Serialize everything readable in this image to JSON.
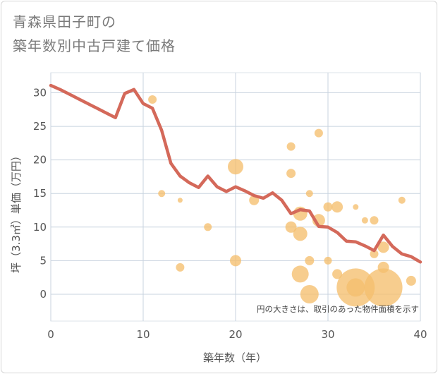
{
  "title": {
    "line1": "青森県田子町の",
    "line2": "築年数別中古戸建て価格"
  },
  "chart_data": {
    "type": "line",
    "xlabel": "築年数（年）",
    "ylabel": "坪（3.3㎡）単価（万円）",
    "xlim": [
      0,
      40
    ],
    "ylim": [
      -4,
      33
    ],
    "x_ticks": [
      0,
      10,
      20,
      30,
      40
    ],
    "y_ticks": [
      0,
      5,
      10,
      15,
      20,
      25,
      30
    ],
    "grid": true,
    "note": "円の大きさは、取引のあった物件面積を示す",
    "colors": {
      "line": "#d4695a",
      "bubble": "#f5bf6e",
      "grid": "#c8d3df",
      "axis_text": "#555555"
    },
    "line": {
      "x": [
        0,
        1,
        2,
        3,
        4,
        5,
        6,
        7,
        8,
        9,
        10,
        11,
        12,
        13,
        14,
        15,
        16,
        17,
        18,
        19,
        20,
        21,
        22,
        23,
        24,
        25,
        26,
        27,
        28,
        29,
        30,
        31,
        32,
        33,
        34,
        35,
        36,
        37,
        38,
        39,
        40
      ],
      "y": [
        31.1,
        30.5,
        29.8,
        29.1,
        28.4,
        27.7,
        27.0,
        26.3,
        29.9,
        30.5,
        28.4,
        27.7,
        24.4,
        19.5,
        17.6,
        16.6,
        15.9,
        17.6,
        16.0,
        15.3,
        16.0,
        15.4,
        14.7,
        14.3,
        15.1,
        14.0,
        12.0,
        12.6,
        12.4,
        10.1,
        10.0,
        9.2,
        7.9,
        7.8,
        7.2,
        6.5,
        8.8,
        7.1,
        6.0,
        5.6,
        4.8
      ]
    },
    "bubbles": [
      {
        "x": 11,
        "y": 29,
        "r": 6
      },
      {
        "x": 12,
        "y": 15,
        "r": 5
      },
      {
        "x": 14,
        "y": 14,
        "r": 3.5
      },
      {
        "x": 14,
        "y": 4,
        "r": 6
      },
      {
        "x": 17,
        "y": 10,
        "r": 5.5
      },
      {
        "x": 20,
        "y": 19,
        "r": 11
      },
      {
        "x": 20,
        "y": 5,
        "r": 8
      },
      {
        "x": 22,
        "y": 14,
        "r": 7
      },
      {
        "x": 26,
        "y": 22,
        "r": 6
      },
      {
        "x": 26,
        "y": 18,
        "r": 6.5
      },
      {
        "x": 26,
        "y": 10,
        "r": 8
      },
      {
        "x": 27,
        "y": 12,
        "r": 10
      },
      {
        "x": 27,
        "y": 9,
        "r": 10
      },
      {
        "x": 27,
        "y": 3,
        "r": 12
      },
      {
        "x": 28,
        "y": 15,
        "r": 5
      },
      {
        "x": 28,
        "y": 5,
        "r": 6.5
      },
      {
        "x": 28,
        "y": 0,
        "r": 13
      },
      {
        "x": 29,
        "y": 24,
        "r": 6
      },
      {
        "x": 29,
        "y": 11,
        "r": 9
      },
      {
        "x": 30,
        "y": 13,
        "r": 6.5
      },
      {
        "x": 30,
        "y": 5,
        "r": 5.5
      },
      {
        "x": 31,
        "y": 13,
        "r": 8
      },
      {
        "x": 31,
        "y": 3,
        "r": 7
      },
      {
        "x": 33,
        "y": 13,
        "r": 4
      },
      {
        "x": 33,
        "y": 1,
        "r": 27
      },
      {
        "x": 33,
        "y": 1,
        "r": 13
      },
      {
        "x": 34,
        "y": 11,
        "r": 4.5
      },
      {
        "x": 35,
        "y": 11,
        "r": 6
      },
      {
        "x": 35,
        "y": 6,
        "r": 6
      },
      {
        "x": 36,
        "y": 7,
        "r": 8
      },
      {
        "x": 36,
        "y": 4,
        "r": 8
      },
      {
        "x": 36,
        "y": 1,
        "r": 27
      },
      {
        "x": 38,
        "y": 14,
        "r": 5
      },
      {
        "x": 39,
        "y": 2,
        "r": 7
      }
    ]
  }
}
